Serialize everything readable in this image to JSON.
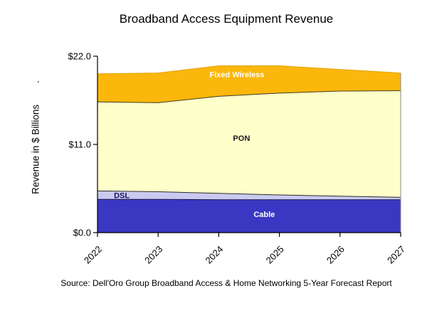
{
  "source_note": "Source: Dell'Oro Group Broadband Access & Home Networking 5-Year Forecast Report",
  "colors": {
    "background": "#FFFFFF",
    "axis": "#000000",
    "text": "#000000",
    "plot_right_edge": "#8A8A8A"
  },
  "chart_data": {
    "type": "area",
    "stacked": true,
    "title": "Broadband Access Equipment Revenue",
    "ylabel": "Revenue in $ Billions        .",
    "xlabel": "",
    "x_categories": [
      "2022",
      "2023",
      "2024",
      "2025",
      "2026",
      "2027"
    ],
    "ylim": [
      0,
      22
    ],
    "yticks": [
      {
        "value": 0,
        "label": "$0.0"
      },
      {
        "value": 11,
        "label": "$11.0"
      },
      {
        "value": 22,
        "label": "$22.0"
      }
    ],
    "grid": false,
    "legend": "inline-area-labels",
    "series": [
      {
        "name": "Cable",
        "values": [
          4.15,
          4.15,
          4.1,
          4.1,
          4.1,
          4.1
        ],
        "fill": "#3A38C2",
        "edge": "#15154A",
        "label_color": "#FFFFFF",
        "label_frac": 0.55,
        "label_dy": -3
      },
      {
        "name": "DSL",
        "values": [
          1.05,
          0.95,
          0.8,
          0.6,
          0.45,
          0.3
        ],
        "fill": "#CACAF1",
        "edge": "#2B2B2B",
        "label_color": "#14145A",
        "label_frac": 0.08,
        "label_dy": 0
      },
      {
        "name": "PON",
        "values": [
          11.1,
          11.1,
          12.1,
          12.7,
          13.1,
          13.3
        ],
        "fill": "#FFFFC9",
        "edge": "#3F3F24",
        "label_color": "#1A1A1A",
        "label_frac": 0.475,
        "label_dy": -9
      },
      {
        "name": "Fixed Wireless",
        "values": [
          3.5,
          3.7,
          3.8,
          3.4,
          2.7,
          2.2
        ],
        "fill": "#FBB70B",
        "edge": "#E2A303",
        "label_color": "#FFFFFF",
        "label_frac": 0.46,
        "label_dy": -9
      }
    ]
  }
}
